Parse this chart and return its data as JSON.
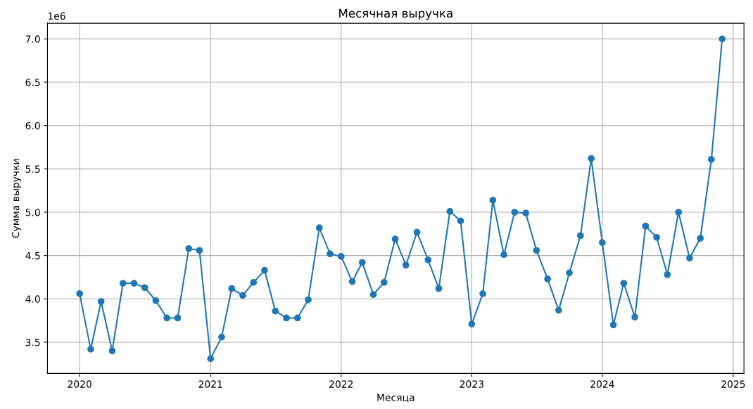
{
  "chart_data": {
    "type": "line",
    "title": "Месячная выручка",
    "xlabel": "Месяца",
    "ylabel": "Сумма выручки",
    "annotations": [
      "1e6"
    ],
    "x": [
      "2020-01",
      "2020-02",
      "2020-03",
      "2020-04",
      "2020-05",
      "2020-06",
      "2020-07",
      "2020-08",
      "2020-09",
      "2020-10",
      "2020-11",
      "2020-12",
      "2021-01",
      "2021-02",
      "2021-03",
      "2021-04",
      "2021-05",
      "2021-06",
      "2021-07",
      "2021-08",
      "2021-09",
      "2021-10",
      "2021-11",
      "2021-12",
      "2022-01",
      "2022-02",
      "2022-03",
      "2022-04",
      "2022-05",
      "2022-06",
      "2022-07",
      "2022-08",
      "2022-09",
      "2022-10",
      "2022-11",
      "2022-12",
      "2023-01",
      "2023-02",
      "2023-03",
      "2023-04",
      "2023-05",
      "2023-06",
      "2023-07",
      "2023-08",
      "2023-09",
      "2023-10",
      "2023-11",
      "2023-12",
      "2024-01",
      "2024-02",
      "2024-03",
      "2024-04",
      "2024-05",
      "2024-06",
      "2024-07",
      "2024-08",
      "2024-09",
      "2024-10",
      "2024-11",
      "2024-12"
    ],
    "series": [
      {
        "color": "#1f77b4",
        "values": [
          4.06,
          3.42,
          3.97,
          3.4,
          4.18,
          4.18,
          4.13,
          3.98,
          3.78,
          3.78,
          4.58,
          4.56,
          3.31,
          3.56,
          4.12,
          4.04,
          4.19,
          4.33,
          3.86,
          3.78,
          3.78,
          3.99,
          4.82,
          4.52,
          4.49,
          4.2,
          4.42,
          4.05,
          4.19,
          4.69,
          4.39,
          4.77,
          4.45,
          4.12,
          5.01,
          4.9,
          3.71,
          4.06,
          5.14,
          4.51,
          5.0,
          4.99,
          4.56,
          4.23,
          3.87,
          4.3,
          4.73,
          5.62,
          4.65,
          3.7,
          4.18,
          3.79,
          4.84,
          4.71,
          4.28,
          5.0,
          4.47,
          4.7,
          5.61,
          7.0
        ]
      }
    ],
    "xlim": [
      "2019-10-03",
      "2025-01-31"
    ],
    "xticks": [
      {
        "value": "2020",
        "label": "2020"
      },
      {
        "value": "2021",
        "label": "2021"
      },
      {
        "value": "2022",
        "label": "2022"
      },
      {
        "value": "2023",
        "label": "2023"
      },
      {
        "value": "2024",
        "label": "2024"
      },
      {
        "value": "2025",
        "label": "2025"
      }
    ],
    "ylim": [
      3.14,
      7.18
    ],
    "yticks": [
      {
        "value": 3.5,
        "label": "3.5"
      },
      {
        "value": 4.0,
        "label": "4.0"
      },
      {
        "value": 4.5,
        "label": "4.5"
      },
      {
        "value": 5.0,
        "label": "5.0"
      },
      {
        "value": 5.5,
        "label": "5.5"
      },
      {
        "value": 6.0,
        "label": "6.0"
      },
      {
        "value": 6.5,
        "label": "6.5"
      },
      {
        "value": 7.0,
        "label": "7.0"
      }
    ],
    "grid": true,
    "marker": "circle",
    "line_style": "solid",
    "legend": false
  }
}
